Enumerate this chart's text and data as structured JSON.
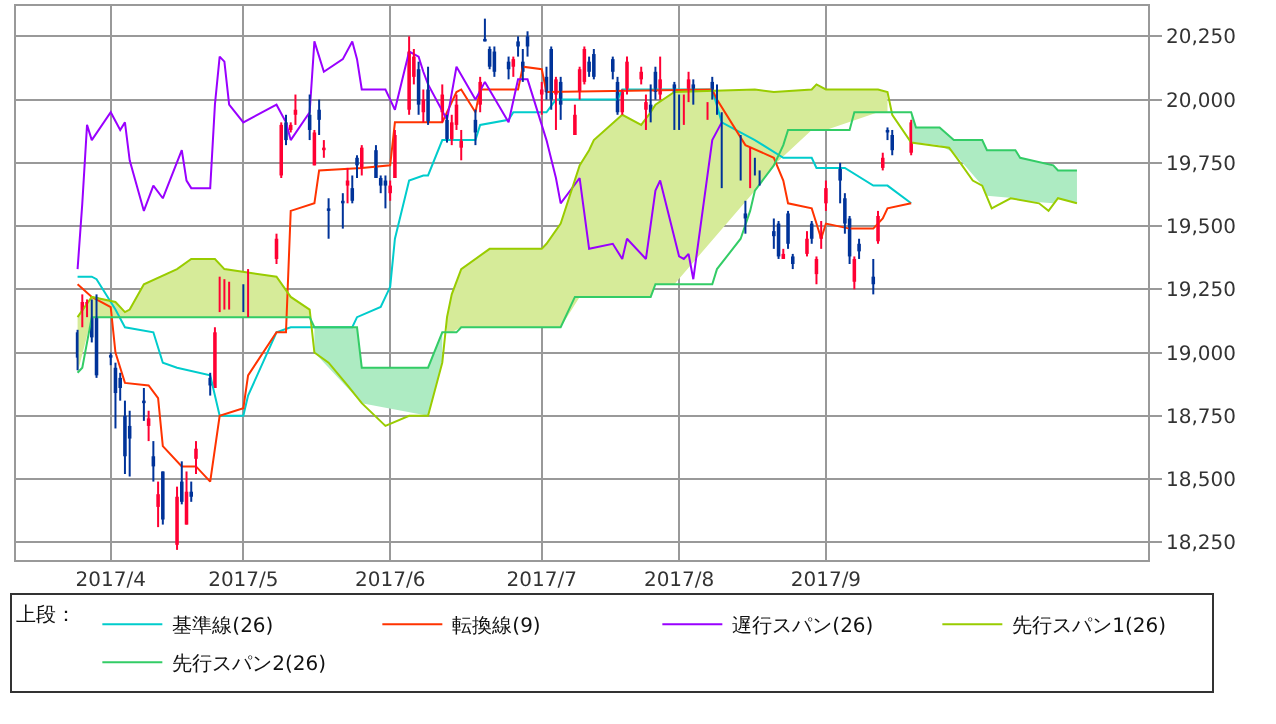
{
  "chart_data": {
    "type": "candlestick",
    "legend_title": "上段：",
    "xlim": [
      "2017-03-14",
      "2017-11-08"
    ],
    "xticks": [
      {
        "value": "2017-04-03",
        "label": "2017/4"
      },
      {
        "value": "2017-05-01",
        "label": "2017/5"
      },
      {
        "value": "2017-06-01",
        "label": "2017/6"
      },
      {
        "value": "2017-07-03",
        "label": "2017/7"
      },
      {
        "value": "2017-08-01",
        "label": "2017/8"
      },
      {
        "value": "2017-09-01",
        "label": "2017/9"
      }
    ],
    "ylim": [
      18180,
      20370
    ],
    "yticks": [
      {
        "value": 18250,
        "label": "18,250"
      },
      {
        "value": 18500,
        "label": "18,500"
      },
      {
        "value": 18750,
        "label": "18,750"
      },
      {
        "value": 19000,
        "label": "19,000"
      },
      {
        "value": 19250,
        "label": "19,250"
      },
      {
        "value": 19500,
        "label": "19,500"
      },
      {
        "value": 19750,
        "label": "19,750"
      },
      {
        "value": 20000,
        "label": "20,000"
      },
      {
        "value": 20250,
        "label": "20,250"
      }
    ],
    "grid": true,
    "legend": "bottom",
    "series": [
      {
        "colors": [
          "#003399",
          "#ff0033",
          "#ff0033",
          "#003399",
          "#003399",
          "#003399",
          "#003399",
          "#003399",
          "#003399",
          "#003399",
          "#003399",
          "#ff0033",
          "#003399",
          "#ff0033",
          "#003399",
          "#ff0033",
          "#003399",
          "#ff0033",
          "#003399",
          "#ff0033",
          "#003399",
          "#ff0033",
          "#ff0033",
          "#ff0033",
          "#ff0033",
          "#003399",
          "#ff0033",
          "#ff0033",
          "#ff0033",
          "#003399",
          "#ff0033",
          "#ff0033",
          "#003399",
          "#ff0033",
          "#003399",
          "#ff0033",
          "#003399",
          "#003399",
          "#ff0033",
          "#003399",
          "#003399",
          "#ff0033",
          "#003399",
          "#003399",
          "#003399",
          "#ff0033",
          "#ff0033",
          "#ff0033",
          "#ff0033",
          "#003399",
          "#ff0033",
          "#003399",
          "#ff0033",
          "#003399",
          "#ff0033",
          "#ff0033",
          "#ff0033",
          "#003399",
          "#ff0033",
          "#003399",
          "#003399",
          "#003399",
          "#003399",
          "#ff0033",
          "#003399",
          "#003399",
          "#003399",
          "#ff0033",
          "#003399",
          "#003399",
          "#ff0033",
          "#003399",
          "#ff0033",
          "#ff0033",
          "#ff0033",
          "#003399",
          "#003399",
          "#003399",
          "#003399",
          "#ff0033",
          "#ff0033",
          "#ff0033",
          "#ff0033",
          "#003399",
          "#003399",
          "#ff0033",
          "#003399",
          "#003399",
          "#ff0033",
          "#ff0033",
          "#003399",
          "#ff0033",
          "#003399",
          "#003399",
          "#003399",
          "#003399",
          "#003399",
          "#ff0033",
          "#003399",
          "#003399",
          "#003399",
          "#003399",
          "#ff0033",
          "#003399",
          "#003399",
          "#ff0033",
          "#003399",
          "#ff0033",
          "#ff0033",
          "#ff0033",
          "#003399",
          "#003399",
          "#003399",
          "#ff0033",
          "#003399",
          "#003399",
          "#ff0033",
          "#ff0033",
          "#003399",
          "#003399",
          "#ff0033"
        ],
        "x": [
          "2017-03-27",
          "2017-03-28",
          "2017-03-29",
          "2017-03-30",
          "2017-03-31",
          "2017-04-03",
          "2017-04-04",
          "2017-04-05",
          "2017-04-06",
          "2017-04-07",
          "2017-04-10",
          "2017-04-11",
          "2017-04-12",
          "2017-04-13",
          "2017-04-14",
          "2017-04-17",
          "2017-04-18",
          "2017-04-19",
          "2017-04-20",
          "2017-04-21",
          "2017-04-24",
          "2017-04-25",
          "2017-04-26",
          "2017-04-27",
          "2017-04-28",
          "2017-05-01",
          "2017-05-02",
          "2017-05-08",
          "2017-05-09",
          "2017-05-10",
          "2017-05-11",
          "2017-05-12",
          "2017-05-15",
          "2017-05-16",
          "2017-05-17",
          "2017-05-18",
          "2017-05-19",
          "2017-05-22",
          "2017-05-23",
          "2017-05-24",
          "2017-05-25",
          "2017-05-26",
          "2017-05-29",
          "2017-05-30",
          "2017-05-31",
          "2017-06-01",
          "2017-06-02",
          "2017-06-05",
          "2017-06-06",
          "2017-06-07",
          "2017-06-08",
          "2017-06-09",
          "2017-06-12",
          "2017-06-13",
          "2017-06-14",
          "2017-06-15",
          "2017-06-16",
          "2017-06-19",
          "2017-06-20",
          "2017-06-21",
          "2017-06-22",
          "2017-06-23",
          "2017-06-26",
          "2017-06-27",
          "2017-06-28",
          "2017-06-29",
          "2017-06-30",
          "2017-07-03",
          "2017-07-04",
          "2017-07-05",
          "2017-07-06",
          "2017-07-07",
          "2017-07-10",
          "2017-07-11",
          "2017-07-12",
          "2017-07-13",
          "2017-07-14",
          "2017-07-18",
          "2017-07-19",
          "2017-07-20",
          "2017-07-21",
          "2017-07-24",
          "2017-07-25",
          "2017-07-26",
          "2017-07-27",
          "2017-07-28",
          "2017-07-31",
          "2017-08-01",
          "2017-08-02",
          "2017-08-03",
          "2017-08-04",
          "2017-08-07",
          "2017-08-08",
          "2017-08-09",
          "2017-08-10",
          "2017-08-14",
          "2017-08-15",
          "2017-08-16",
          "2017-08-17",
          "2017-08-18",
          "2017-08-21",
          "2017-08-22",
          "2017-08-23",
          "2017-08-24",
          "2017-08-25",
          "2017-08-28",
          "2017-08-29",
          "2017-08-30",
          "2017-08-31",
          "2017-09-01",
          "2017-09-04",
          "2017-09-05",
          "2017-09-06",
          "2017-09-07",
          "2017-09-08",
          "2017-09-11",
          "2017-09-12",
          "2017-09-13",
          "2017-09-14",
          "2017-09-15",
          "2017-09-19"
        ],
        "ohlc": [
          [
            19080,
            19090,
            18930,
            18980
          ],
          [
            19140,
            19230,
            19100,
            19200
          ],
          [
            19180,
            19210,
            19140,
            19200
          ],
          [
            19170,
            19210,
            19040,
            19060
          ],
          [
            19220,
            19230,
            18900,
            18910
          ],
          [
            18990,
            19000,
            18950,
            18980
          ],
          [
            18940,
            18960,
            18700,
            18840
          ],
          [
            18900,
            18920,
            18810,
            18860
          ],
          [
            18750,
            18810,
            18520,
            18590
          ],
          [
            18710,
            18770,
            18510,
            18660
          ],
          [
            18810,
            18860,
            18730,
            18800
          ],
          [
            18710,
            18770,
            18650,
            18740
          ],
          [
            18590,
            18650,
            18490,
            18550
          ],
          [
            18390,
            18490,
            18310,
            18440
          ],
          [
            18530,
            18530,
            18320,
            18340
          ],
          [
            18240,
            18470,
            18220,
            18430
          ],
          [
            18490,
            18570,
            18400,
            18410
          ],
          [
            18320,
            18530,
            18320,
            18450
          ],
          [
            18450,
            18490,
            18410,
            18430
          ],
          [
            18580,
            18650,
            18520,
            18620
          ],
          [
            18900,
            18920,
            18830,
            18870
          ],
          [
            18860,
            19100,
            18860,
            19080
          ],
          [
            19170,
            19300,
            19160,
            19290
          ],
          [
            19180,
            19290,
            19170,
            19270
          ],
          [
            19180,
            19280,
            19170,
            19270
          ],
          [
            19250,
            19270,
            19160,
            19200
          ],
          [
            19140,
            19330,
            19140,
            19310
          ],
          [
            19370,
            19470,
            19350,
            19450
          ],
          [
            19700,
            19910,
            19690,
            19900
          ],
          [
            19910,
            19940,
            19820,
            19840
          ],
          [
            19880,
            19910,
            19870,
            19900
          ],
          [
            19940,
            20020,
            19900,
            19960
          ],
          [
            19940,
            20020,
            19840,
            19880
          ],
          [
            19740,
            19880,
            19740,
            19870
          ],
          [
            19960,
            20000,
            19860,
            19920
          ],
          [
            19800,
            19840,
            19770,
            19810
          ],
          [
            19570,
            19610,
            19450,
            19560
          ],
          [
            19600,
            19630,
            19490,
            19590
          ],
          [
            19660,
            19730,
            19590,
            19680
          ],
          [
            19650,
            19700,
            19590,
            19600
          ],
          [
            19770,
            19780,
            19690,
            19740
          ],
          [
            19730,
            19820,
            19700,
            19810
          ],
          [
            19800,
            19820,
            19690,
            19690
          ],
          [
            19690,
            19700,
            19630,
            19660
          ],
          [
            19680,
            19700,
            19570,
            19660
          ],
          [
            19630,
            19680,
            19600,
            19660
          ],
          [
            19690,
            19880,
            19690,
            19860
          ],
          [
            19960,
            20250,
            19940,
            20190
          ],
          [
            20090,
            20200,
            20060,
            20170
          ],
          [
            20120,
            20150,
            19940,
            19980
          ],
          [
            19950,
            20040,
            19910,
            20000
          ],
          [
            20040,
            20130,
            19900,
            19910
          ],
          [
            19950,
            20060,
            19910,
            20020
          ],
          [
            19920,
            19940,
            19830,
            19840
          ],
          [
            19840,
            19940,
            19820,
            19910
          ],
          [
            19900,
            20020,
            19880,
            19980
          ],
          [
            19810,
            19880,
            19760,
            19840
          ],
          [
            19920,
            19960,
            19820,
            19870
          ],
          [
            19980,
            20090,
            19950,
            20070
          ],
          [
            20240,
            20320,
            20230,
            20230
          ],
          [
            20200,
            20210,
            20120,
            20130
          ],
          [
            20190,
            20210,
            20090,
            20110
          ],
          [
            20150,
            20170,
            20080,
            20120
          ],
          [
            20130,
            20170,
            20090,
            20160
          ],
          [
            20230,
            20250,
            20170,
            20210
          ],
          [
            20150,
            20200,
            20070,
            20110
          ],
          [
            20250,
            20270,
            20170,
            20210
          ],
          [
            20020,
            20070,
            19940,
            20040
          ],
          [
            20090,
            20130,
            20000,
            20030
          ],
          [
            20200,
            20210,
            19960,
            20000
          ],
          [
            20020,
            20090,
            19880,
            20080
          ],
          [
            20070,
            20090,
            19920,
            19980
          ],
          [
            19860,
            19980,
            19860,
            19940
          ],
          [
            20030,
            20130,
            20000,
            20120
          ],
          [
            20070,
            20210,
            20060,
            20200
          ],
          [
            20150,
            20170,
            20090,
            20110
          ],
          [
            20180,
            20200,
            20080,
            20090
          ],
          [
            20160,
            20170,
            20080,
            20110
          ],
          [
            20070,
            20090,
            19940,
            19950
          ],
          [
            19950,
            20040,
            19940,
            20030
          ],
          [
            20040,
            20170,
            20020,
            20150
          ],
          [
            20080,
            20130,
            20060,
            20110
          ],
          [
            19960,
            20020,
            19880,
            19990
          ],
          [
            19980,
            20060,
            19910,
            19940
          ],
          [
            20110,
            20130,
            20000,
            20030
          ],
          [
            20020,
            20170,
            20000,
            20080
          ],
          [
            20060,
            20070,
            19880,
            19940
          ],
          [
            19980,
            20020,
            19880,
            19910
          ],
          [
            19900,
            20020,
            19900,
            19990
          ],
          [
            20040,
            20110,
            19990,
            20080
          ],
          [
            20060,
            20080,
            19980,
            20020
          ],
          [
            19950,
            19990,
            19920,
            19960
          ],
          [
            20070,
            20090,
            20000,
            20030
          ],
          [
            20030,
            20060,
            19940,
            19950
          ],
          [
            19940,
            19950,
            19650,
            19730
          ],
          [
            19840,
            19860,
            19680,
            19720
          ],
          [
            19550,
            19600,
            19470,
            19530
          ],
          [
            19680,
            19810,
            19650,
            19750
          ],
          [
            19750,
            19770,
            19700,
            19720
          ],
          [
            19710,
            19720,
            19660,
            19700
          ],
          [
            19480,
            19530,
            19410,
            19460
          ],
          [
            19510,
            19520,
            19370,
            19380
          ],
          [
            19370,
            19410,
            19370,
            19390
          ],
          [
            19550,
            19560,
            19410,
            19430
          ],
          [
            19380,
            19390,
            19330,
            19350
          ],
          [
            19390,
            19480,
            19380,
            19450
          ],
          [
            19510,
            19520,
            19430,
            19450
          ],
          [
            19310,
            19380,
            19270,
            19370
          ],
          [
            19450,
            19520,
            19410,
            19470
          ],
          [
            19590,
            19680,
            19560,
            19650
          ],
          [
            19730,
            19750,
            19590,
            19680
          ],
          [
            19610,
            19630,
            19470,
            19510
          ],
          [
            19530,
            19540,
            19350,
            19380
          ],
          [
            19280,
            19380,
            19250,
            19370
          ],
          [
            19430,
            19450,
            19370,
            19400
          ],
          [
            19300,
            19370,
            19230,
            19270
          ],
          [
            19440,
            19560,
            19430,
            19540
          ],
          [
            19730,
            19790,
            19720,
            19770
          ],
          [
            19880,
            19890,
            19840,
            19870
          ],
          [
            19860,
            19880,
            19780,
            19800
          ],
          [
            19790,
            19920,
            19780,
            19910
          ]
        ]
      },
      {
        "type": "line",
        "name": "基準線(26)",
        "color": "#00cccc",
        "x": [
          "2017-03-27",
          "2017-03-30",
          "2017-03-31",
          "2017-04-04",
          "2017-04-06",
          "2017-04-12",
          "2017-04-14",
          "2017-04-17",
          "2017-04-24",
          "2017-04-26",
          "2017-05-01",
          "2017-05-02",
          "2017-05-08",
          "2017-05-11",
          "2017-05-24",
          "2017-05-25",
          "2017-05-30",
          "2017-06-01",
          "2017-06-02",
          "2017-06-05",
          "2017-06-08",
          "2017-06-09",
          "2017-06-12",
          "2017-06-19",
          "2017-06-20",
          "2017-06-26",
          "2017-06-27",
          "2017-07-04",
          "2017-07-06",
          "2017-07-19",
          "2017-07-20",
          "2017-08-08",
          "2017-08-10",
          "2017-08-17",
          "2017-08-23",
          "2017-08-29",
          "2017-08-30",
          "2017-09-05",
          "2017-09-11",
          "2017-09-14",
          "2017-09-19"
        ],
        "values": [
          19300,
          19300,
          19290,
          19170,
          19100,
          19080,
          18960,
          18940,
          18910,
          18750,
          18750,
          18830,
          19080,
          19100,
          19100,
          19140,
          19180,
          19260,
          19450,
          19680,
          19700,
          19700,
          19840,
          19840,
          19900,
          19920,
          19950,
          19950,
          20000,
          20000,
          20040,
          20040,
          19910,
          19840,
          19770,
          19770,
          19730,
          19730,
          19660,
          19660,
          19590
        ]
      },
      {
        "type": "line",
        "name": "転換線(9)",
        "color": "#ff3300",
        "x": [
          "2017-03-27",
          "2017-03-30",
          "2017-04-03",
          "2017-04-04",
          "2017-04-06",
          "2017-04-11",
          "2017-04-13",
          "2017-04-14",
          "2017-04-18",
          "2017-04-21",
          "2017-04-24",
          "2017-04-26",
          "2017-05-01",
          "2017-05-02",
          "2017-05-08",
          "2017-05-10",
          "2017-05-11",
          "2017-05-16",
          "2017-05-17",
          "2017-05-26",
          "2017-06-01",
          "2017-06-02",
          "2017-06-12",
          "2017-06-13",
          "2017-06-15",
          "2017-06-16",
          "2017-06-19",
          "2017-06-20",
          "2017-06-28",
          "2017-06-29",
          "2017-07-03",
          "2017-07-04",
          "2017-08-08",
          "2017-08-09",
          "2017-08-15",
          "2017-08-21",
          "2017-08-23",
          "2017-08-24",
          "2017-08-29",
          "2017-08-30",
          "2017-08-31",
          "2017-09-01",
          "2017-09-06",
          "2017-09-11",
          "2017-09-13",
          "2017-09-14",
          "2017-09-19"
        ],
        "values": [
          19270,
          19220,
          19180,
          19000,
          18880,
          18870,
          18820,
          18630,
          18550,
          18550,
          18490,
          18750,
          18780,
          18910,
          19080,
          19080,
          19560,
          19590,
          19720,
          19730,
          19740,
          19910,
          19910,
          19950,
          20030,
          20040,
          19950,
          20040,
          20040,
          20130,
          20120,
          20030,
          20040,
          20000,
          19820,
          19770,
          19680,
          19590,
          19570,
          19510,
          19450,
          19510,
          19490,
          19490,
          19530,
          19570,
          19590
        ]
      },
      {
        "type": "line",
        "name": "遅行スパン(26)",
        "color": "#9900ff",
        "x": [
          "2017-03-27",
          "2017-03-28",
          "2017-03-29",
          "2017-03-30",
          "2017-04-03",
          "2017-04-05",
          "2017-04-06",
          "2017-04-07",
          "2017-04-10",
          "2017-04-12",
          "2017-04-14",
          "2017-04-18",
          "2017-04-19",
          "2017-04-20",
          "2017-04-24",
          "2017-04-25",
          "2017-04-26",
          "2017-04-27",
          "2017-04-28",
          "2017-05-01",
          "2017-05-08",
          "2017-05-10",
          "2017-05-11",
          "2017-05-15",
          "2017-05-16",
          "2017-05-18",
          "2017-05-22",
          "2017-05-24",
          "2017-05-25",
          "2017-05-26",
          "2017-05-31",
          "2017-06-01",
          "2017-06-02",
          "2017-06-05",
          "2017-06-07",
          "2017-06-08",
          "2017-06-09",
          "2017-06-13",
          "2017-06-15",
          "2017-06-19",
          "2017-06-21",
          "2017-06-26",
          "2017-06-28",
          "2017-06-30",
          "2017-07-04",
          "2017-07-06",
          "2017-07-07",
          "2017-07-11",
          "2017-07-13",
          "2017-07-18",
          "2017-07-20",
          "2017-07-21",
          "2017-07-25",
          "2017-07-27",
          "2017-07-28",
          "2017-08-01",
          "2017-08-02",
          "2017-08-03",
          "2017-08-04",
          "2017-08-08",
          "2017-08-10"
        ],
        "values": [
          19330,
          19590,
          19900,
          19840,
          19950,
          19880,
          19910,
          19760,
          19560,
          19660,
          19610,
          19800,
          19680,
          19650,
          19650,
          19980,
          20170,
          20150,
          19980,
          19910,
          19980,
          19910,
          19840,
          19950,
          20230,
          20110,
          20160,
          20230,
          20160,
          20040,
          20040,
          20000,
          19960,
          20190,
          20170,
          20110,
          20060,
          19920,
          20130,
          20000,
          20070,
          19910,
          20080,
          20080,
          19840,
          19690,
          19590,
          19690,
          19410,
          19430,
          19370,
          19450,
          19370,
          19640,
          19680,
          19380,
          19370,
          19390,
          19290,
          19840,
          19910
        ]
      },
      {
        "type": "line",
        "name": "先行スパン1(26)",
        "color": "#99cc00",
        "x": [
          "2017-03-27",
          "2017-03-30",
          "2017-04-04",
          "2017-04-06",
          "2017-04-07",
          "2017-04-10",
          "2017-04-17",
          "2017-04-20",
          "2017-04-25",
          "2017-04-27",
          "2017-05-08",
          "2017-05-11",
          "2017-05-15",
          "2017-05-16",
          "2017-05-19",
          "2017-05-23",
          "2017-05-26",
          "2017-05-31",
          "2017-06-05",
          "2017-06-09",
          "2017-06-12",
          "2017-06-13",
          "2017-06-14",
          "2017-06-16",
          "2017-06-22",
          "2017-07-03",
          "2017-07-04",
          "2017-07-07",
          "2017-07-11",
          "2017-07-13",
          "2017-07-14",
          "2017-07-20",
          "2017-07-24",
          "2017-07-26",
          "2017-07-27",
          "2017-07-31",
          "2017-08-17",
          "2017-08-21",
          "2017-08-29",
          "2017-08-30",
          "2017-09-01",
          "2017-09-12",
          "2017-09-14",
          "2017-09-15",
          "2017-09-19",
          "2017-09-27",
          "2017-09-29",
          "2017-10-02",
          "2017-10-04",
          "2017-10-06",
          "2017-10-10",
          "2017-10-16",
          "2017-10-18",
          "2017-10-20",
          "2017-10-24"
        ],
        "values": [
          19140,
          19220,
          19200,
          19160,
          19170,
          19270,
          19330,
          19370,
          19370,
          19330,
          19300,
          19220,
          19170,
          19000,
          18960,
          18870,
          18800,
          18710,
          18750,
          18750,
          18960,
          19140,
          19230,
          19330,
          19410,
          19410,
          19430,
          19510,
          19740,
          19800,
          19840,
          19940,
          19900,
          19950,
          19980,
          20030,
          20040,
          20030,
          20040,
          20060,
          20040,
          20040,
          20030,
          19940,
          19830,
          19810,
          19760,
          19680,
          19660,
          19570,
          19610,
          19590,
          19560,
          19610,
          19590
        ],
        "upper": [
          19140,
          19220,
          19200,
          19160,
          19170,
          19270,
          19330,
          19370,
          19370,
          19330,
          19300,
          19220,
          19170,
          null,
          null,
          null,
          null,
          null,
          null,
          null,
          null,
          19140,
          19230,
          19330,
          19410,
          19410,
          19430,
          19510,
          19740,
          19800,
          19840,
          19940,
          19900,
          19950,
          19980,
          20030,
          20040,
          20030,
          20040,
          20060,
          20040,
          20040,
          20030,
          null,
          null,
          null,
          null,
          null,
          null,
          null,
          null,
          null,
          null,
          null,
          null
        ],
        "lower": [
          18920,
          19140,
          19140,
          19140,
          19140,
          19140,
          19140,
          19140,
          19140,
          19140,
          19140,
          19140,
          19140,
          null,
          null,
          null,
          null,
          null,
          null,
          null,
          null,
          19080,
          19080,
          19100,
          19100,
          19100,
          19100,
          19100,
          19220,
          19220,
          19220,
          19220,
          19220,
          19220,
          19270,
          19270,
          19640,
          19740,
          19880,
          19880,
          19880,
          19950,
          19950,
          null,
          null,
          null,
          null,
          null,
          null,
          null,
          null,
          null,
          null,
          null,
          null
        ]
      },
      {
        "type": "line",
        "name": "先行スパン2(26)",
        "color": "#33cc66",
        "x": [
          "2017-03-27",
          "2017-03-28",
          "2017-03-30",
          "2017-05-15",
          "2017-05-16",
          "2017-05-25",
          "2017-05-26",
          "2017-06-09",
          "2017-06-12",
          "2017-06-15",
          "2017-06-16",
          "2017-07-07",
          "2017-07-10",
          "2017-07-26",
          "2017-07-27",
          "2017-08-08",
          "2017-08-09",
          "2017-08-14",
          "2017-08-16",
          "2017-08-17",
          "2017-08-21",
          "2017-08-23",
          "2017-08-24",
          "2017-09-06",
          "2017-09-07",
          "2017-09-19",
          "2017-09-20",
          "2017-09-25",
          "2017-09-28",
          "2017-10-04",
          "2017-10-05",
          "2017-10-11",
          "2017-10-12",
          "2017-10-19",
          "2017-10-20",
          "2017-10-24"
        ],
        "values": [
          18920,
          18940,
          19140,
          19140,
          19100,
          19100,
          18940,
          18940,
          19080,
          19080,
          19100,
          19100,
          19220,
          19220,
          19270,
          19270,
          19330,
          19450,
          19560,
          19640,
          19740,
          19820,
          19880,
          19880,
          19950,
          19950,
          19890,
          19890,
          19840,
          19840,
          19800,
          19800,
          19770,
          19740,
          19720,
          19720
        ],
        "upper": [
          null,
          null,
          null,
          null,
          19100,
          19100,
          18940,
          18940,
          19080,
          null,
          null,
          null,
          null,
          null,
          null,
          null,
          null,
          null,
          null,
          null,
          null,
          null,
          null,
          null,
          null,
          19950,
          19890,
          19890,
          19840,
          19840,
          19800,
          19800,
          19770,
          19740,
          19720,
          19720
        ],
        "lower": [
          null,
          null,
          null,
          null,
          19000,
          18820,
          18800,
          18750,
          18960,
          null,
          null,
          null,
          null,
          null,
          null,
          null,
          null,
          null,
          null,
          null,
          null,
          null,
          null,
          null,
          null,
          19830,
          19830,
          19820,
          19790,
          19660,
          19620,
          19610,
          19600,
          19590,
          19610,
          19590
        ]
      }
    ]
  }
}
